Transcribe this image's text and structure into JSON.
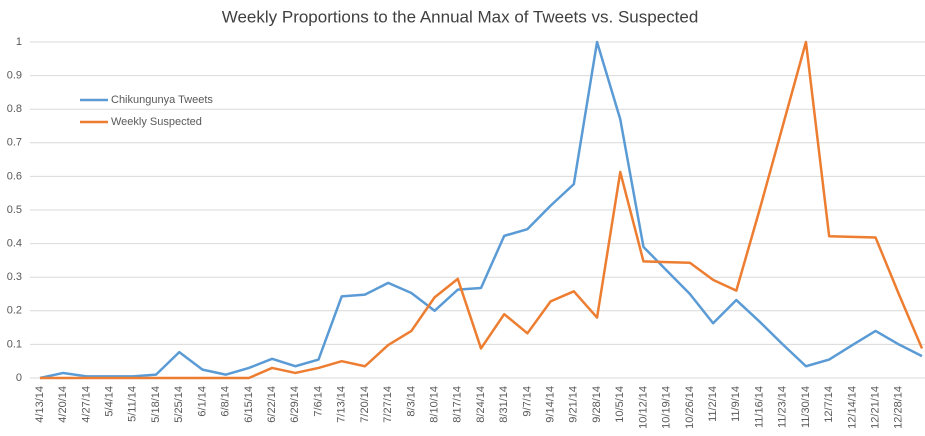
{
  "chart_data": {
    "type": "line",
    "title": "Weekly Proportions to the Annual Max of Tweets vs. Suspected",
    "categories": [
      "4/13/14",
      "4/20/14",
      "4/27/14",
      "5/4/14",
      "5/11/14",
      "5/18/14",
      "5/25/14",
      "6/1/14",
      "6/8/14",
      "6/15/14",
      "6/22/14",
      "6/29/14",
      "7/6/14",
      "7/13/14",
      "7/20/14",
      "7/27/14",
      "8/3/14",
      "8/10/14",
      "8/17/14",
      "8/24/14",
      "8/31/14",
      "9/7/14",
      "9/14/14",
      "9/21/14",
      "9/28/14",
      "10/5/14",
      "10/12/14",
      "10/19/14",
      "10/26/14",
      "11/2/14",
      "11/9/14",
      "11/16/14",
      "11/23/14",
      "11/30/14",
      "12/7/14",
      "12/14/14",
      "12/21/14",
      "12/28/14",
      null
    ],
    "series": [
      {
        "name": "Chikungunya Tweets",
        "color": "#5b9bd5",
        "values": [
          0,
          0.015,
          0.005,
          0.005,
          0.005,
          0.01,
          0.077,
          0.025,
          0.01,
          0.03,
          0.057,
          0.035,
          0.055,
          0.243,
          0.248,
          0.283,
          0.253,
          0.2,
          0.263,
          0.268,
          0.423,
          0.443,
          0.513,
          0.577,
          1.0,
          0.77,
          0.39,
          0.32,
          0.25,
          0.163,
          0.232,
          0.168,
          0.1,
          0.035,
          0.055,
          0.098,
          0.14,
          0.1,
          0.065
        ]
      },
      {
        "name": "Weekly Suspected",
        "color": "#ed7d31",
        "values": [
          0,
          0,
          0,
          0,
          0,
          0,
          0,
          0,
          0,
          0,
          0.03,
          0.015,
          0.03,
          0.05,
          0.035,
          0.098,
          0.14,
          0.24,
          0.295,
          0.088,
          0.19,
          0.133,
          0.228,
          0.258,
          0.18,
          0.613,
          0.347,
          0.345,
          0.343,
          0.292,
          0.26,
          0.5,
          0.75,
          1.0,
          0.422,
          0.42,
          0.418,
          0.25,
          0.088
        ]
      }
    ],
    "ylim": [
      0,
      1
    ],
    "yticks": [
      0,
      0.1,
      0.2,
      0.3,
      0.4,
      0.5,
      0.6,
      0.7,
      0.8,
      0.9,
      1
    ],
    "grid": true,
    "legend": "upper left"
  }
}
